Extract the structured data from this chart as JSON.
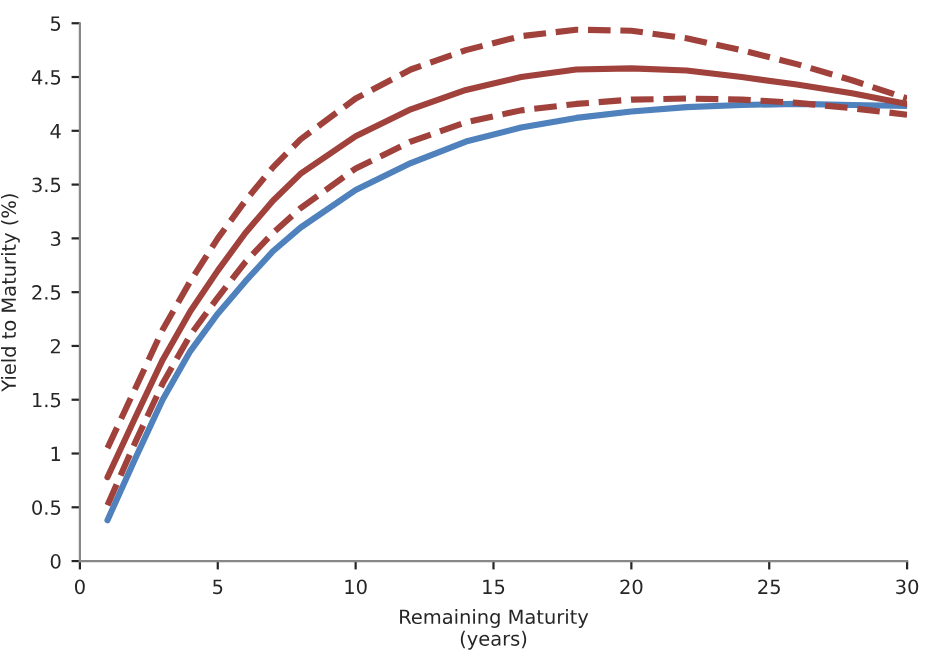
{
  "chart_data": {
    "type": "line",
    "xlabel": "Remaining Maturity\n(years)",
    "ylabel": "Yield to Maturity (%)",
    "xlim": [
      0,
      30
    ],
    "xticks": [
      0,
      5,
      10,
      15,
      20,
      25,
      30
    ],
    "ylim": [
      0,
      5
    ],
    "yticks": [
      0,
      0.5,
      1,
      1.5,
      2,
      2.5,
      3,
      3.5,
      4,
      4.5,
      5
    ],
    "grid": false,
    "legend": false,
    "x": [
      1,
      2,
      3,
      4,
      5,
      6,
      7,
      8,
      10,
      12,
      14,
      16,
      18,
      20,
      22,
      24,
      26,
      28,
      30
    ],
    "series": [
      {
        "color": "#4f81bd",
        "line_style": "solid",
        "values": [
          0.38,
          0.95,
          1.5,
          1.95,
          2.3,
          2.6,
          2.88,
          3.1,
          3.45,
          3.7,
          3.9,
          4.03,
          4.12,
          4.18,
          4.22,
          4.24,
          4.25,
          4.24,
          4.23
        ]
      },
      {
        "color": "#a0413c",
        "line_style": "dashed",
        "values": [
          0.52,
          1.1,
          1.65,
          2.1,
          2.45,
          2.78,
          3.05,
          3.28,
          3.65,
          3.9,
          4.08,
          4.19,
          4.25,
          4.29,
          4.3,
          4.29,
          4.26,
          4.21,
          4.15
        ]
      },
      {
        "color": "#a0413c",
        "line_style": "solid",
        "values": [
          0.78,
          1.33,
          1.87,
          2.32,
          2.7,
          3.05,
          3.35,
          3.6,
          3.95,
          4.2,
          4.38,
          4.5,
          4.57,
          4.58,
          4.56,
          4.5,
          4.43,
          4.35,
          4.25
        ]
      },
      {
        "color": "#a0413c",
        "line_style": "dashed",
        "values": [
          1.05,
          1.6,
          2.15,
          2.6,
          3.0,
          3.35,
          3.66,
          3.92,
          4.3,
          4.57,
          4.75,
          4.88,
          4.94,
          4.93,
          4.86,
          4.75,
          4.62,
          4.47,
          4.3
        ]
      }
    ]
  }
}
